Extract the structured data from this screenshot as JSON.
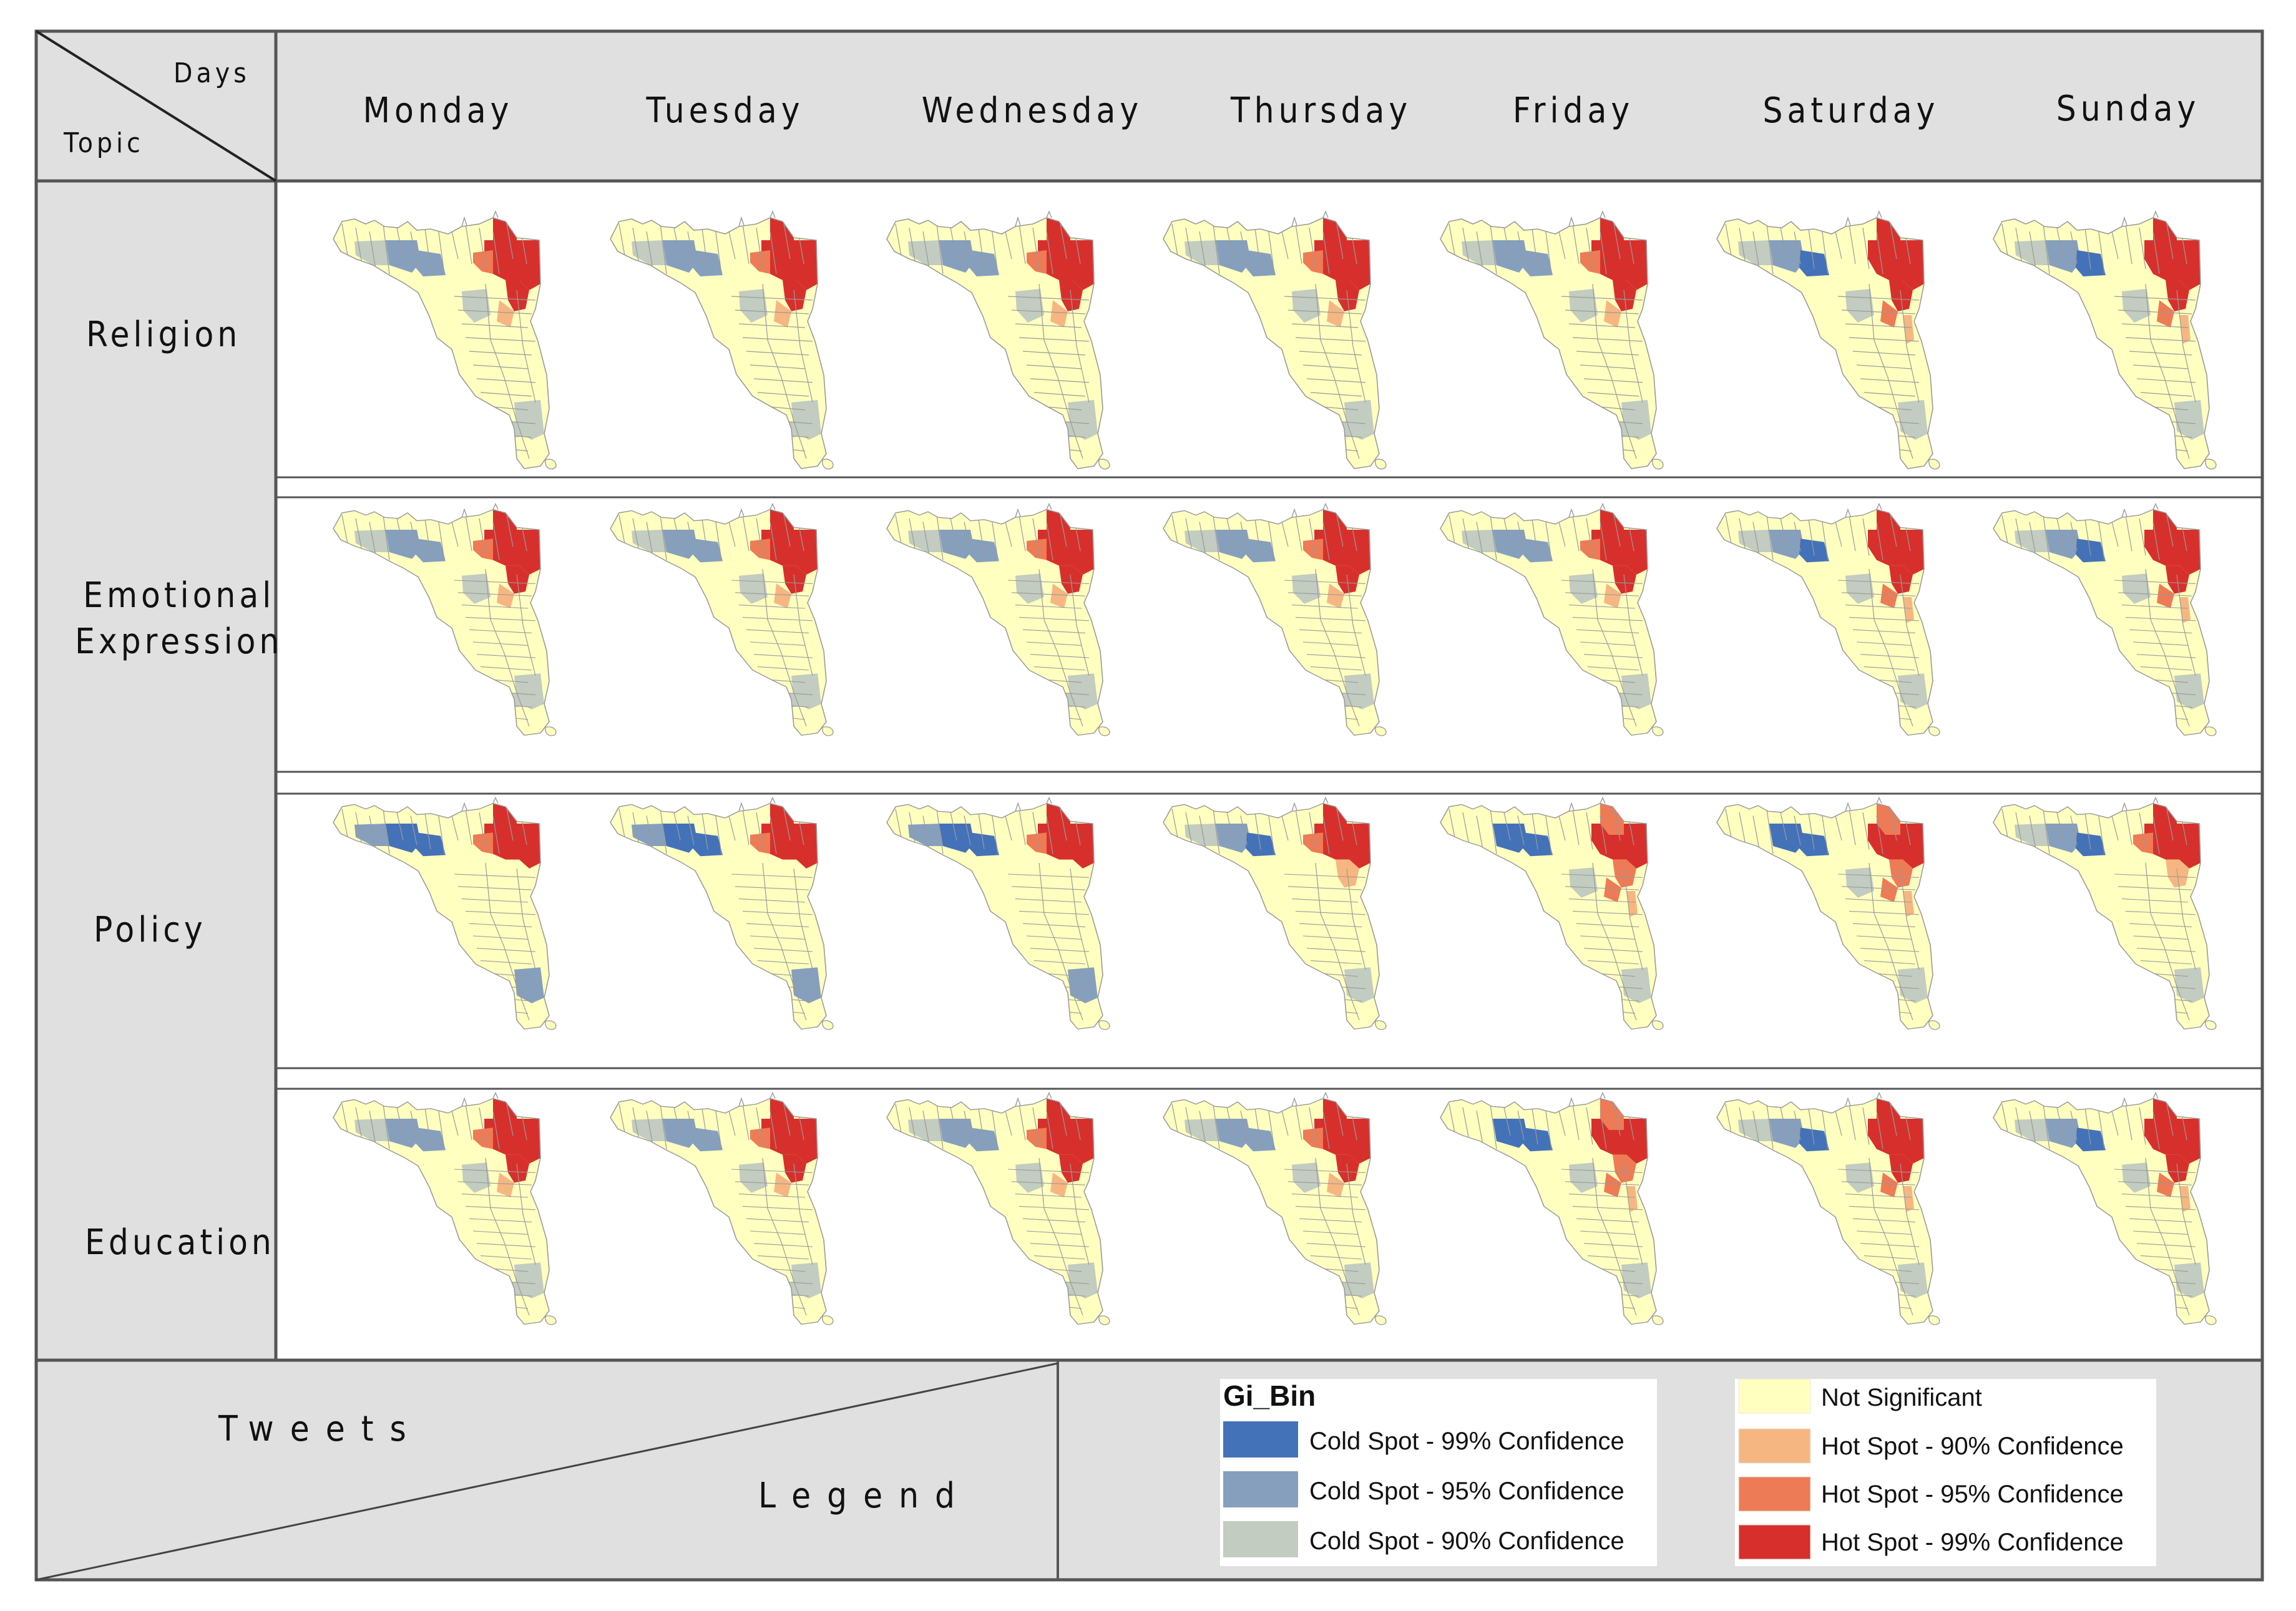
{
  "header": {
    "corner_days": "Days",
    "corner_topic": "Topic",
    "days": [
      "Monday",
      "Tuesday",
      "Wednesday",
      "Thursday",
      "Friday",
      "Saturday",
      "Sunday"
    ]
  },
  "topics": [
    {
      "label": "Religion"
    },
    {
      "label": "Emotional Expression",
      "line1": "Emotional",
      "line2": "Expression"
    },
    {
      "label": "Policy"
    },
    {
      "label": "Education"
    }
  ],
  "footer": {
    "tweets_label": "Tweets",
    "legend_label": "Legend"
  },
  "legend": {
    "title": "Gi_Bin",
    "cold": [
      {
        "label": "Cold Spot - 99% Confidence",
        "color": "#4472b8"
      },
      {
        "label": "Cold Spot - 95% Confidence",
        "color": "#869fbd"
      },
      {
        "label": "Cold Spot - 90% Confidence",
        "color": "#c2ccc0"
      }
    ],
    "hot": [
      {
        "label": "Not Significant",
        "color": "#ffffc0"
      },
      {
        "label": "Hot Spot - 90% Confidence",
        "color": "#f6b682"
      },
      {
        "label": "Hot Spot - 95% Confidence",
        "color": "#ed7b55"
      },
      {
        "label": "Hot Spot - 99% Confidence",
        "color": "#d7302c"
      }
    ]
  },
  "colors": {
    "panel_bg": "#e0e0e0",
    "frame": "#555555",
    "district_outline": "#9a9a9a"
  },
  "map_variants": [
    [
      "A",
      "A",
      "A",
      "A",
      "A",
      "B",
      "B"
    ],
    [
      "A",
      "A",
      "A",
      "A",
      "A",
      "B",
      "B"
    ],
    [
      "C",
      "C",
      "C",
      "D",
      "E",
      "E",
      "D"
    ],
    [
      "A",
      "A",
      "A",
      "A",
      "E",
      "B",
      "B"
    ]
  ]
}
